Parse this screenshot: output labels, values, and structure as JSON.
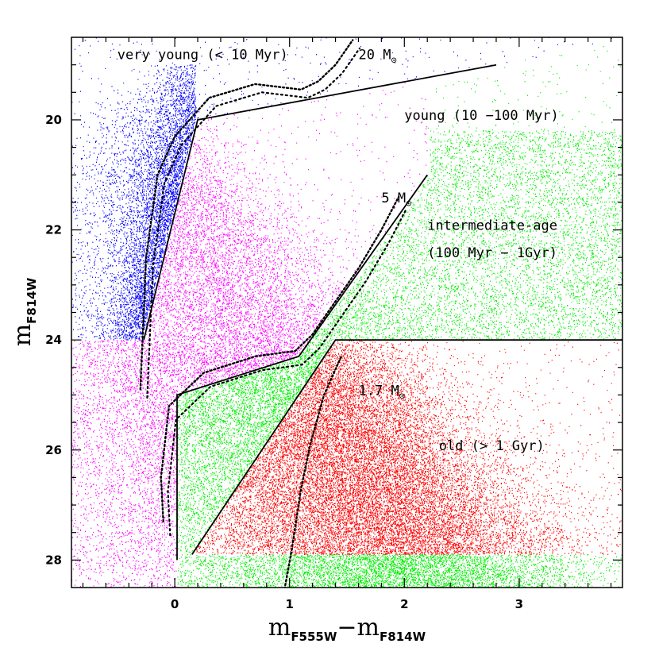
{
  "chart_data": {
    "type": "scatter",
    "title": "",
    "xlabel": "m",
    "xlabel_sub": "F555W",
    "xlabel_sep": "−m",
    "xlabel_sub2": "F814W",
    "ylabel": "m",
    "ylabel_sub": "F814W",
    "xlim": [
      -0.9,
      3.9
    ],
    "ylim": [
      28.5,
      18.5
    ],
    "y_inverted": true,
    "x_ticks": [
      0,
      1,
      2,
      3
    ],
    "x_tick_labels": [
      "0",
      "1",
      "2",
      "3"
    ],
    "y_ticks": [
      20,
      22,
      24,
      26,
      28
    ],
    "y_tick_labels": [
      "20",
      "22",
      "24",
      "26",
      "28"
    ],
    "grid": false,
    "legend": "none",
    "series": [
      {
        "color": "#0000ff",
        "label": "very young (< 10 Myr)"
      },
      {
        "color": "#ff00ff",
        "label": "young (10 −100 Myr)"
      },
      {
        "color": "#00ee00",
        "label": "intermediate-age (100 Myr − 1Gyr)"
      },
      {
        "color": "#ff0000",
        "label": "old (> 1 Gyr)"
      }
    ],
    "boundary_lines": [
      {
        "name": "young-upper",
        "points": [
          [
            -0.27,
            24.0
          ],
          [
            0.2,
            20.0
          ],
          [
            2.8,
            19.0
          ]
        ]
      },
      {
        "name": "young-lower",
        "points": [
          [
            0.02,
            28.0
          ],
          [
            0.02,
            25.0
          ],
          [
            1.08,
            24.3
          ],
          [
            2.2,
            21.0
          ]
        ]
      },
      {
        "name": "old-boundary",
        "points": [
          [
            0.15,
            27.9
          ],
          [
            1.4,
            24.0
          ],
          [
            3.9,
            24.0
          ]
        ]
      }
    ],
    "tracks": [
      {
        "name": "20 Msun",
        "points": [
          [
            -0.3,
            24.9
          ],
          [
            -0.25,
            22.5
          ],
          [
            -0.15,
            21.0
          ],
          [
            0.0,
            20.3
          ],
          [
            0.3,
            19.6
          ],
          [
            0.7,
            19.35
          ],
          [
            1.1,
            19.45
          ],
          [
            1.25,
            19.3
          ],
          [
            1.4,
            19.0
          ],
          [
            1.5,
            18.7
          ],
          [
            1.55,
            18.55
          ]
        ]
      },
      {
        "name": "5 Msun",
        "points": [
          [
            -0.1,
            27.3
          ],
          [
            -0.12,
            26.5
          ],
          [
            -0.05,
            25.2
          ],
          [
            0.25,
            24.6
          ],
          [
            0.7,
            24.3
          ],
          [
            1.05,
            24.2
          ],
          [
            1.2,
            23.9
          ],
          [
            1.4,
            23.3
          ],
          [
            1.6,
            22.7
          ],
          [
            1.8,
            22.0
          ],
          [
            1.95,
            21.4
          ]
        ]
      },
      {
        "name": "1.7 Msun",
        "points": [
          [
            0.95,
            28.6
          ],
          [
            1.02,
            27.8
          ],
          [
            1.1,
            26.7
          ],
          [
            1.18,
            25.9
          ],
          [
            1.3,
            25.0
          ],
          [
            1.45,
            24.3
          ]
        ]
      }
    ],
    "annotations": [
      {
        "text": "very young (< 10 Myr)",
        "x": -0.5,
        "y": 18.9
      },
      {
        "text": "20 M",
        "sub": "⊙",
        "x": 1.6,
        "y": 18.9
      },
      {
        "text": "young (10 −100 Myr)",
        "x": 2.0,
        "y": 20.0
      },
      {
        "text": "5 M",
        "sub": "⊙",
        "x": 1.8,
        "y": 21.5
      },
      {
        "text": "intermediate-age",
        "x": 2.2,
        "y": 22.0
      },
      {
        "text": "(100 Myr − 1Gyr)",
        "x": 2.2,
        "y": 22.5
      },
      {
        "text": "1.7 M",
        "sub": "⊙",
        "x": 1.6,
        "y": 25.0
      },
      {
        "text": "old (> 1 Gyr)",
        "x": 2.3,
        "y": 26.0
      }
    ]
  }
}
